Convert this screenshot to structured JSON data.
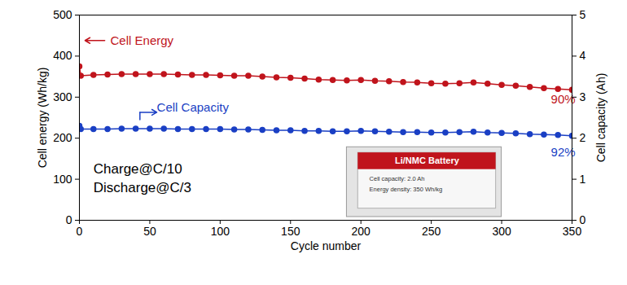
{
  "chart_data": {
    "type": "line",
    "x": [
      0,
      1,
      10,
      20,
      30,
      40,
      50,
      60,
      70,
      80,
      90,
      100,
      110,
      120,
      130,
      140,
      150,
      160,
      170,
      180,
      190,
      200,
      210,
      220,
      230,
      240,
      250,
      260,
      270,
      280,
      290,
      300,
      310,
      320,
      330,
      340,
      350
    ],
    "xlim": [
      0,
      350
    ],
    "xticks": [
      0,
      50,
      100,
      150,
      200,
      250,
      300,
      350
    ],
    "ylim": [
      0,
      500
    ],
    "yticks": [
      0,
      100,
      200,
      300,
      400,
      500
    ],
    "y2lim": [
      0,
      5
    ],
    "y2ticks": [
      0,
      1,
      2,
      3,
      4,
      5
    ],
    "xlabel": "Cycle number",
    "ylabel": "Cell energy (Wh/kg)",
    "y2label": "Cell capacity (Ah)",
    "grid": false,
    "series": [
      {
        "name": "Cell Energy",
        "color": "#c0141c",
        "marker": "circle",
        "values": [
          375,
          352,
          354,
          355,
          356,
          356,
          356,
          356,
          355,
          354,
          354,
          353,
          352,
          352,
          350,
          348,
          347,
          345,
          343,
          342,
          341,
          342,
          340,
          339,
          337,
          336,
          334,
          333,
          334,
          336,
          333,
          330,
          328,
          325,
          322,
          320,
          318
        ]
      },
      {
        "name": "Cell Capacity",
        "color": "#1a3fc4",
        "marker": "circle",
        "axis": "y2",
        "values": [
          2.3,
          2.22,
          2.22,
          2.22,
          2.23,
          2.23,
          2.23,
          2.23,
          2.22,
          2.22,
          2.22,
          2.22,
          2.21,
          2.21,
          2.2,
          2.19,
          2.19,
          2.18,
          2.18,
          2.17,
          2.17,
          2.18,
          2.17,
          2.16,
          2.15,
          2.15,
          2.14,
          2.14,
          2.15,
          2.16,
          2.14,
          2.13,
          2.12,
          2.1,
          2.09,
          2.08,
          2.06
        ]
      }
    ],
    "annotations": [
      {
        "series": 0,
        "x": 22,
        "y": 438,
        "arrow": "left"
      },
      {
        "series": 1,
        "x": 55,
        "y": 275,
        "arrow": "right"
      },
      {
        "text": "90%",
        "x": 335,
        "y": 295,
        "color": "#c0141c"
      },
      {
        "text": "92%",
        "x": 335,
        "y": 165,
        "color": "#1a3fc4"
      },
      {
        "text": "Charge@C/10",
        "x": 10,
        "y": 125,
        "color": "#000000"
      },
      {
        "text": "Discharge@C/3",
        "x": 10,
        "y": 80,
        "color": "#000000"
      }
    ],
    "inset": {
      "x": [
        190,
        300
      ],
      "y": [
        8,
        178
      ],
      "title": "Li/NMC Battery",
      "lines": [
        "Cell capacity: 2.0 Ah",
        "Energy density: 350 Wh/kg"
      ]
    }
  }
}
